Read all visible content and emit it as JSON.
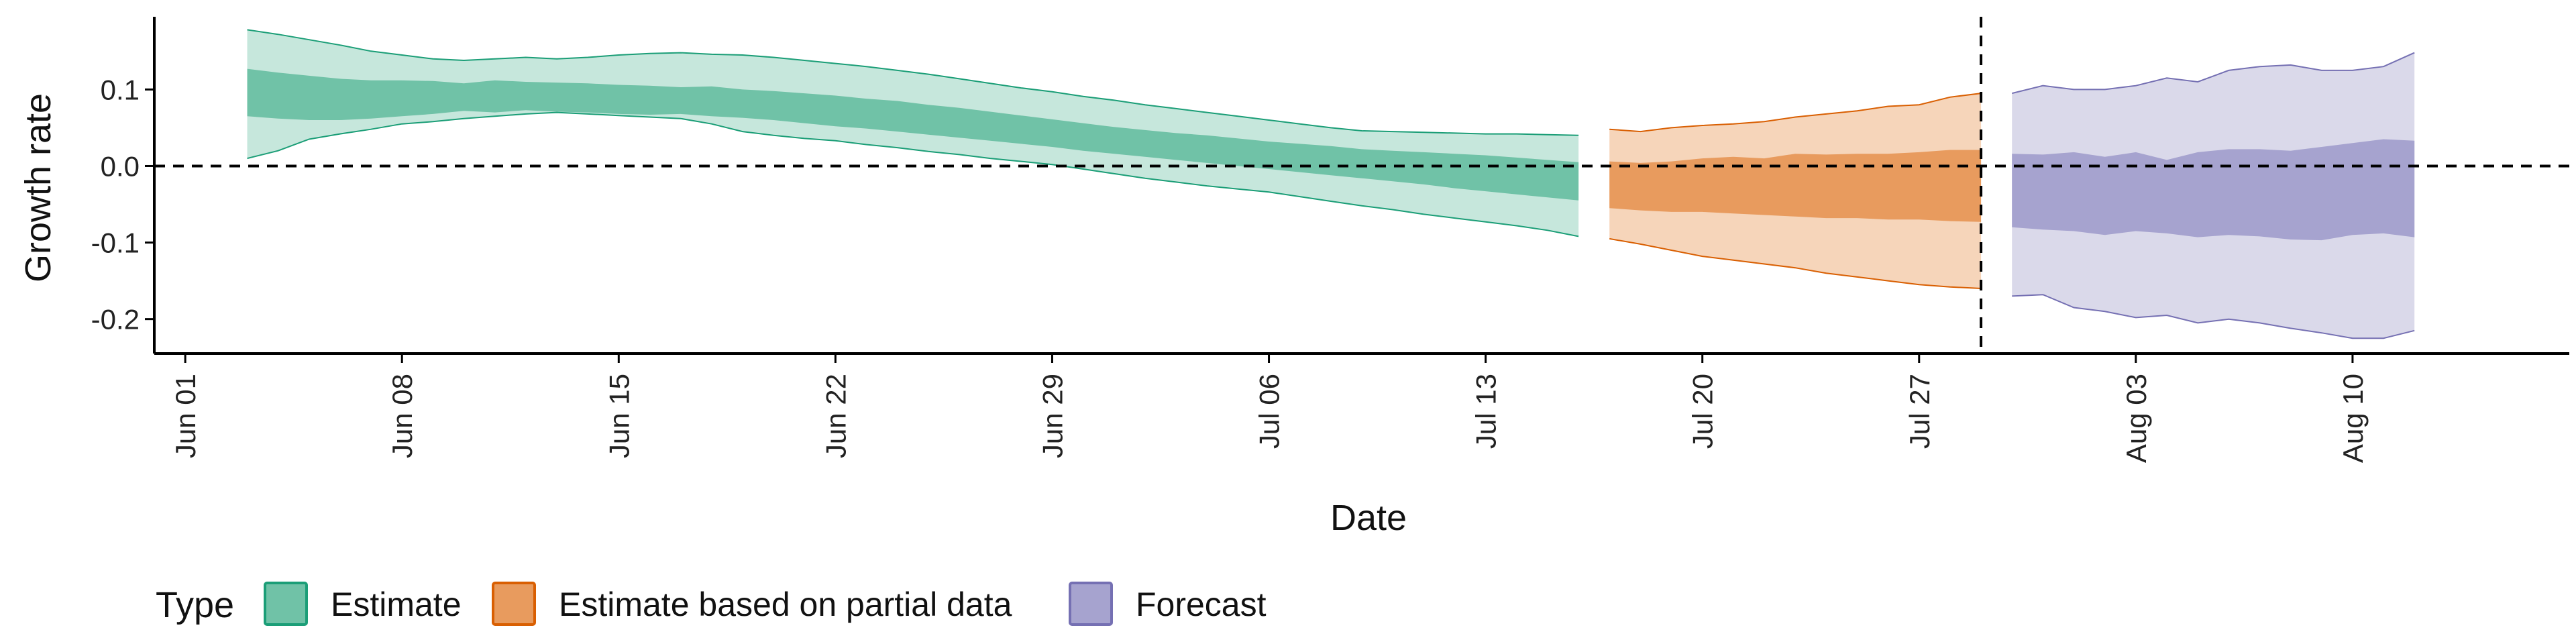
{
  "chart_data": {
    "type": "area",
    "title": "",
    "xlabel": "Date",
    "ylabel": "Growth rate",
    "x_ticks": [
      "Jun 01",
      "Jun 08",
      "Jun 15",
      "Jun 22",
      "Jun 29",
      "Jul 06",
      "Jul 13",
      "Jul 20",
      "Jul 27",
      "Aug 03",
      "Aug 10"
    ],
    "x_tick_dates": [
      "2020-06-01",
      "2020-06-08",
      "2020-06-15",
      "2020-06-22",
      "2020-06-29",
      "2020-07-06",
      "2020-07-13",
      "2020-07-20",
      "2020-07-27",
      "2020-08-03",
      "2020-08-10"
    ],
    "xlim": [
      "2020-05-31",
      "2020-08-17"
    ],
    "y_ticks": [
      0.1,
      0.0,
      -0.1,
      -0.2
    ],
    "y_tick_labels": [
      "0.1",
      "0.0",
      "-0.1",
      "-0.2"
    ],
    "ylim": [
      -0.245,
      0.195
    ],
    "reference_line_y": 0.0,
    "vertical_line_date": "2020-07-29",
    "legend": {
      "title": "Type",
      "position": "bottom"
    },
    "series": [
      {
        "name": "Estimate",
        "fill_color": "#70c2a7",
        "outer_fill_color": "#c6e7dc",
        "line_color": "#1b9e77",
        "x": [
          "2020-06-03",
          "2020-06-04",
          "2020-06-05",
          "2020-06-06",
          "2020-06-07",
          "2020-06-08",
          "2020-06-09",
          "2020-06-10",
          "2020-06-11",
          "2020-06-12",
          "2020-06-13",
          "2020-06-14",
          "2020-06-15",
          "2020-06-16",
          "2020-06-17",
          "2020-06-18",
          "2020-06-19",
          "2020-06-20",
          "2020-06-21",
          "2020-06-22",
          "2020-06-23",
          "2020-06-24",
          "2020-06-25",
          "2020-06-26",
          "2020-06-27",
          "2020-06-28",
          "2020-06-29",
          "2020-06-30",
          "2020-07-01",
          "2020-07-02",
          "2020-07-03",
          "2020-07-04",
          "2020-07-05",
          "2020-07-06",
          "2020-07-07",
          "2020-07-08",
          "2020-07-09",
          "2020-07-10",
          "2020-07-11",
          "2020-07-12",
          "2020-07-13",
          "2020-07-14",
          "2020-07-15",
          "2020-07-16"
        ],
        "upper_90": [
          0.178,
          0.172,
          0.165,
          0.158,
          0.15,
          0.145,
          0.14,
          0.138,
          0.14,
          0.142,
          0.14,
          0.142,
          0.145,
          0.147,
          0.148,
          0.146,
          0.145,
          0.142,
          0.138,
          0.134,
          0.13,
          0.125,
          0.12,
          0.114,
          0.108,
          0.102,
          0.097,
          0.091,
          0.086,
          0.08,
          0.075,
          0.07,
          0.065,
          0.06,
          0.055,
          0.05,
          0.046,
          0.045,
          0.044,
          0.043,
          0.042,
          0.042,
          0.041,
          0.04
        ],
        "upper_50": [
          0.127,
          0.122,
          0.118,
          0.114,
          0.112,
          0.112,
          0.111,
          0.108,
          0.112,
          0.11,
          0.109,
          0.108,
          0.106,
          0.105,
          0.103,
          0.104,
          0.1,
          0.098,
          0.095,
          0.092,
          0.088,
          0.085,
          0.08,
          0.076,
          0.071,
          0.066,
          0.061,
          0.056,
          0.051,
          0.047,
          0.043,
          0.04,
          0.036,
          0.032,
          0.029,
          0.026,
          0.022,
          0.02,
          0.018,
          0.016,
          0.014,
          0.011,
          0.008,
          0.005
        ],
        "lower_50": [
          0.065,
          0.062,
          0.06,
          0.06,
          0.062,
          0.065,
          0.068,
          0.072,
          0.07,
          0.073,
          0.071,
          0.07,
          0.068,
          0.067,
          0.068,
          0.065,
          0.063,
          0.06,
          0.056,
          0.052,
          0.049,
          0.045,
          0.041,
          0.037,
          0.033,
          0.029,
          0.025,
          0.02,
          0.016,
          0.012,
          0.008,
          0.004,
          0.0,
          -0.004,
          -0.008,
          -0.012,
          -0.016,
          -0.02,
          -0.024,
          -0.029,
          -0.033,
          -0.037,
          -0.041,
          -0.045
        ],
        "lower_90": [
          0.01,
          0.02,
          0.035,
          0.042,
          0.048,
          0.055,
          0.058,
          0.062,
          0.065,
          0.068,
          0.07,
          0.068,
          0.066,
          0.064,
          0.062,
          0.055,
          0.045,
          0.04,
          0.036,
          0.033,
          0.028,
          0.024,
          0.019,
          0.015,
          0.01,
          0.006,
          0.002,
          -0.004,
          -0.01,
          -0.016,
          -0.021,
          -0.026,
          -0.03,
          -0.034,
          -0.04,
          -0.046,
          -0.052,
          -0.057,
          -0.063,
          -0.068,
          -0.073,
          -0.078,
          -0.084,
          -0.092
        ]
      },
      {
        "name": "Estimate based on partial data",
        "fill_color": "#e89b5e",
        "outer_fill_color": "#f6d5ba",
        "line_color": "#d95f02",
        "x": [
          "2020-07-17",
          "2020-07-18",
          "2020-07-19",
          "2020-07-20",
          "2020-07-21",
          "2020-07-22",
          "2020-07-23",
          "2020-07-24",
          "2020-07-25",
          "2020-07-26",
          "2020-07-27",
          "2020-07-28",
          "2020-07-29"
        ],
        "upper_90": [
          0.048,
          0.045,
          0.05,
          0.053,
          0.055,
          0.058,
          0.064,
          0.068,
          0.072,
          0.078,
          0.08,
          0.09,
          0.095
        ],
        "upper_50": [
          0.006,
          0.004,
          0.006,
          0.01,
          0.012,
          0.01,
          0.016,
          0.015,
          0.016,
          0.016,
          0.018,
          0.021,
          0.021
        ],
        "lower_50": [
          -0.055,
          -0.058,
          -0.06,
          -0.06,
          -0.062,
          -0.064,
          -0.066,
          -0.068,
          -0.068,
          -0.07,
          -0.07,
          -0.072,
          -0.073
        ],
        "lower_90": [
          -0.095,
          -0.102,
          -0.11,
          -0.118,
          -0.123,
          -0.128,
          -0.133,
          -0.14,
          -0.145,
          -0.15,
          -0.155,
          -0.158,
          -0.16
        ]
      },
      {
        "name": "Forecast",
        "fill_color": "#a6a3cf",
        "outer_fill_color": "#dad9ea",
        "line_color": "#7570b3",
        "x": [
          "2020-07-30",
          "2020-07-31",
          "2020-08-01",
          "2020-08-02",
          "2020-08-03",
          "2020-08-04",
          "2020-08-05",
          "2020-08-06",
          "2020-08-07",
          "2020-08-08",
          "2020-08-09",
          "2020-08-10",
          "2020-08-11",
          "2020-08-12"
        ],
        "upper_90": [
          0.095,
          0.105,
          0.1,
          0.1,
          0.105,
          0.115,
          0.11,
          0.125,
          0.13,
          0.132,
          0.125,
          0.125,
          0.13,
          0.148
        ],
        "upper_50": [
          0.016,
          0.015,
          0.018,
          0.012,
          0.018,
          0.008,
          0.018,
          0.022,
          0.022,
          0.02,
          0.025,
          0.03,
          0.035,
          0.033
        ],
        "lower_50": [
          -0.08,
          -0.083,
          -0.085,
          -0.09,
          -0.085,
          -0.088,
          -0.093,
          -0.09,
          -0.092,
          -0.096,
          -0.097,
          -0.09,
          -0.088,
          -0.093
        ],
        "lower_90": [
          -0.17,
          -0.168,
          -0.185,
          -0.19,
          -0.198,
          -0.195,
          -0.205,
          -0.2,
          -0.205,
          -0.212,
          -0.218,
          -0.225,
          -0.225,
          -0.215
        ]
      }
    ]
  }
}
